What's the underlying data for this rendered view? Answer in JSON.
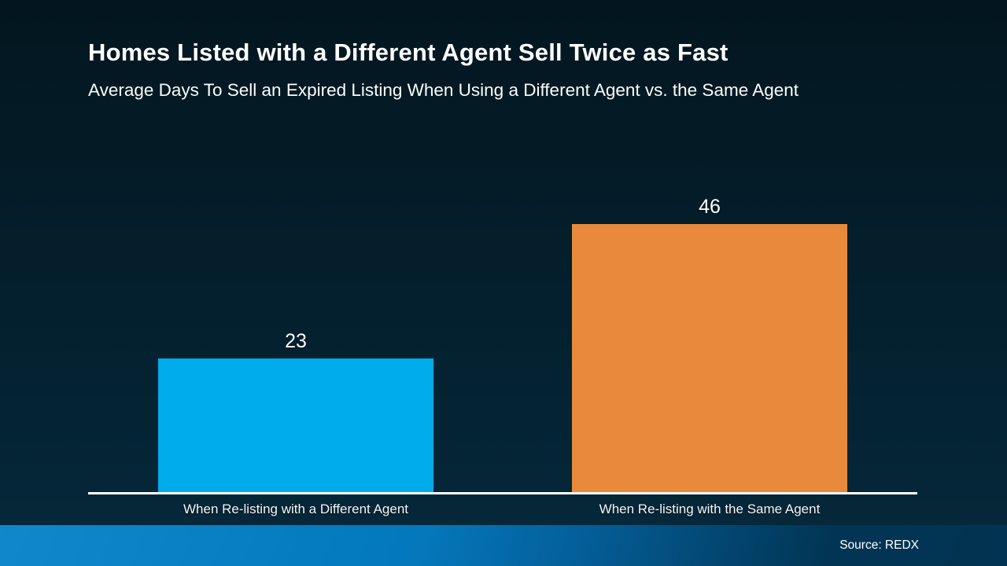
{
  "header": {
    "title": "Homes Listed with a Different Agent Sell Twice as Fast",
    "subtitle": "Average Days To Sell an Expired Listing When Using a Different Agent vs. the Same Agent"
  },
  "chart_data": {
    "type": "bar",
    "title": "Homes Listed with a Different Agent Sell Twice as Fast",
    "subtitle": "Average Days To Sell an Expired Listing When Using a Different Agent vs. the Same Agent",
    "categories": [
      "When Re-listing with a Different Agent",
      "When Re-listing with the Same Agent"
    ],
    "values": [
      23,
      46
    ],
    "bar_colors": [
      "#00ACEC",
      "#E8893B"
    ],
    "xlabel": "",
    "ylabel": "",
    "ylim": [
      0,
      50
    ],
    "gridlines": false,
    "legend": "none",
    "data_labels_shown": true
  },
  "colors": {
    "background_top": "#03161F",
    "background_mid": "#04202E",
    "background_bottom": "#05293C",
    "axis_line": "#FFFFFF",
    "footer_left": "#0481C9",
    "footer_right": "#02395B",
    "text": "#FFFFFF"
  },
  "footer": {
    "source": "Source: REDX"
  }
}
